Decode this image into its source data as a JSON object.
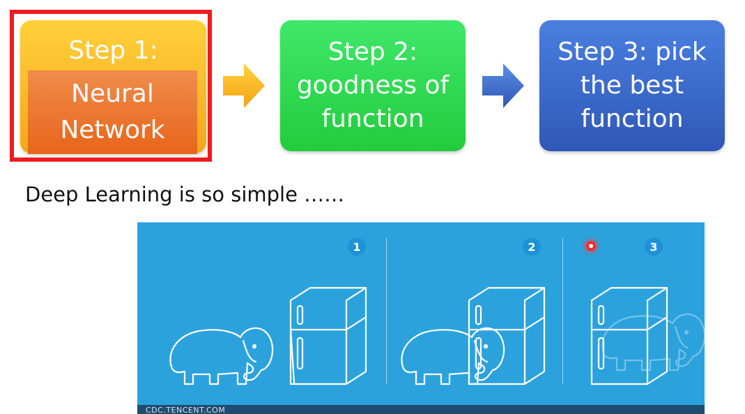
{
  "steps": [
    {
      "title": "Step 1:",
      "inner_lines": [
        "Neural",
        "Network"
      ]
    },
    {
      "lines": [
        "Step 2:",
        "goodness of",
        "function"
      ]
    },
    {
      "lines": [
        "Step 3: pick",
        "the best",
        "function"
      ]
    }
  ],
  "caption": "Deep Learning is so simple ……",
  "illustration": {
    "numbers": [
      "1",
      "2",
      "3"
    ],
    "watermark": "CDC.TENCENT.COM"
  },
  "colors": {
    "step1_outer": "#f9b825",
    "step1_inner": "#ea7028",
    "step2": "#2ed84f",
    "step3": "#3a68c9",
    "highlight": "#ee1b22",
    "arrow1": "#f9b81a",
    "arrow2": "#3a68c9",
    "panel": "#2ca2dd"
  }
}
